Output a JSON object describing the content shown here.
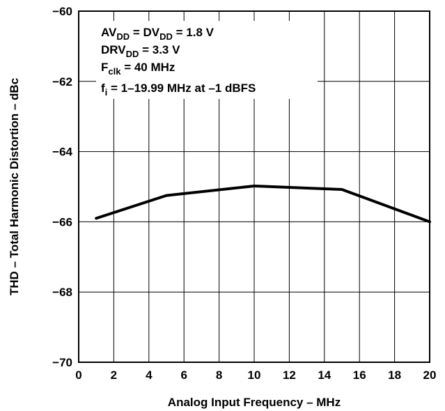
{
  "chart_data": {
    "type": "line",
    "xlabel": "Analog Input Frequency – MHz",
    "ylabel": "THD – Total Harmonic Distortion – dBc",
    "xlim": [
      0,
      20
    ],
    "ylim": [
      -70,
      -60
    ],
    "x_ticks": [
      "0",
      "2",
      "4",
      "6",
      "8",
      "10",
      "12",
      "14",
      "16",
      "18",
      "20"
    ],
    "y_ticks": [
      "−70",
      "−68",
      "−66",
      "−64",
      "−62",
      "−60"
    ],
    "grid": true,
    "series": [
      {
        "x": [
          1,
          5,
          10,
          15,
          20
        ],
        "y": [
          -65.9,
          -65.25,
          -64.98,
          -65.08,
          -66.0
        ]
      }
    ],
    "annotations": [
      {
        "parts": [
          {
            "t": "AV"
          },
          {
            "t": "DD",
            "sub": true
          },
          {
            "t": " = DV"
          },
          {
            "t": "DD",
            "sub": true
          },
          {
            "t": " = 1.8 V"
          }
        ]
      },
      {
        "parts": [
          {
            "t": "DRV"
          },
          {
            "t": "DD",
            "sub": true
          },
          {
            "t": " = 3.3 V"
          }
        ]
      },
      {
        "parts": [
          {
            "t": "F"
          },
          {
            "t": "clk",
            "sub": true
          },
          {
            "t": " = 40 MHz"
          }
        ]
      },
      {
        "parts": [
          {
            "t": "f"
          },
          {
            "t": "i",
            "sub": true
          },
          {
            "t": " = 1–19.99 MHz at –1 dBFS"
          }
        ]
      }
    ]
  }
}
